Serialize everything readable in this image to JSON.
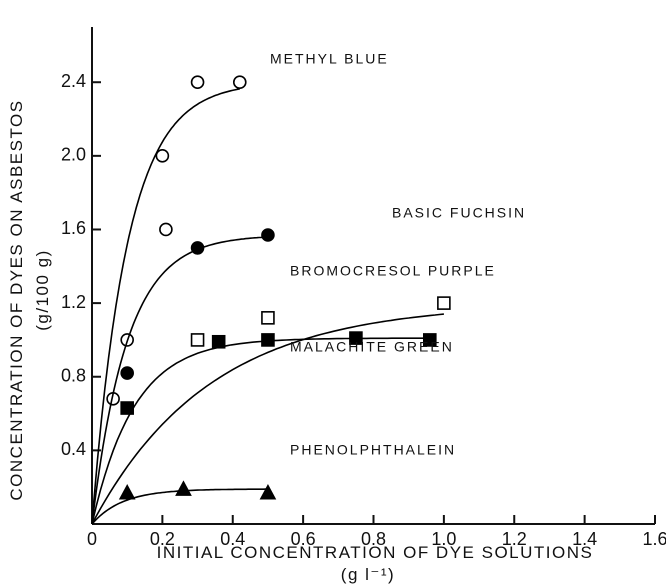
{
  "chart_data": {
    "type": "scatter",
    "y_label": "CONCENTRATION OF DYES ON ASBESTOS",
    "y_unit": "(g/100 g)",
    "x_label": "INITIAL CONCENTRATION OF DYE SOLUTIONS",
    "x_unit": "(g l⁻¹)",
    "xlim": [
      0,
      1.6
    ],
    "ylim": [
      0,
      2.7
    ],
    "xticks": [
      0,
      0.2,
      0.4,
      0.6,
      0.8,
      {
        "value": 1,
        "label": "1.0"
      },
      1.2,
      1.4,
      1.6
    ],
    "yticks": [
      0.4,
      0.8,
      1.2,
      1.6,
      {
        "value": 2,
        "label": "2.0"
      },
      2.4
    ],
    "series": [
      {
        "name": "METHYL BLUE",
        "color": "#000000",
        "marker": "open-circle",
        "x": [
          0.06,
          0.1,
          0.2,
          0.21,
          0.3,
          0.42
        ],
        "values": [
          0.68,
          1.0,
          2.0,
          1.6,
          2.4,
          2.4
        ]
      },
      {
        "name": "BASIC FUCHSIN",
        "color": "#000000",
        "marker": "filled-circle",
        "x": [
          0.1,
          0.3,
          0.5
        ],
        "values": [
          0.82,
          1.5,
          1.57
        ]
      },
      {
        "name": "BROMOCRESOL PURPLE",
        "color": "#000000",
        "marker": "open-square",
        "x": [
          0.3,
          0.5,
          1.0
        ],
        "values": [
          1.0,
          1.12,
          1.2
        ]
      },
      {
        "name": "MALACHITE GREEN",
        "color": "#000000",
        "marker": "filled-square",
        "x": [
          0.1,
          0.36,
          0.5,
          0.75,
          0.96
        ],
        "values": [
          0.63,
          0.99,
          1.0,
          1.01,
          1.0
        ]
      },
      {
        "name": "PHENOLPHTHALEIN",
        "color": "#000000",
        "marker": "filled-triangle",
        "x": [
          0.1,
          0.26,
          0.5
        ],
        "values": [
          0.17,
          0.19,
          0.17
        ]
      }
    ]
  }
}
